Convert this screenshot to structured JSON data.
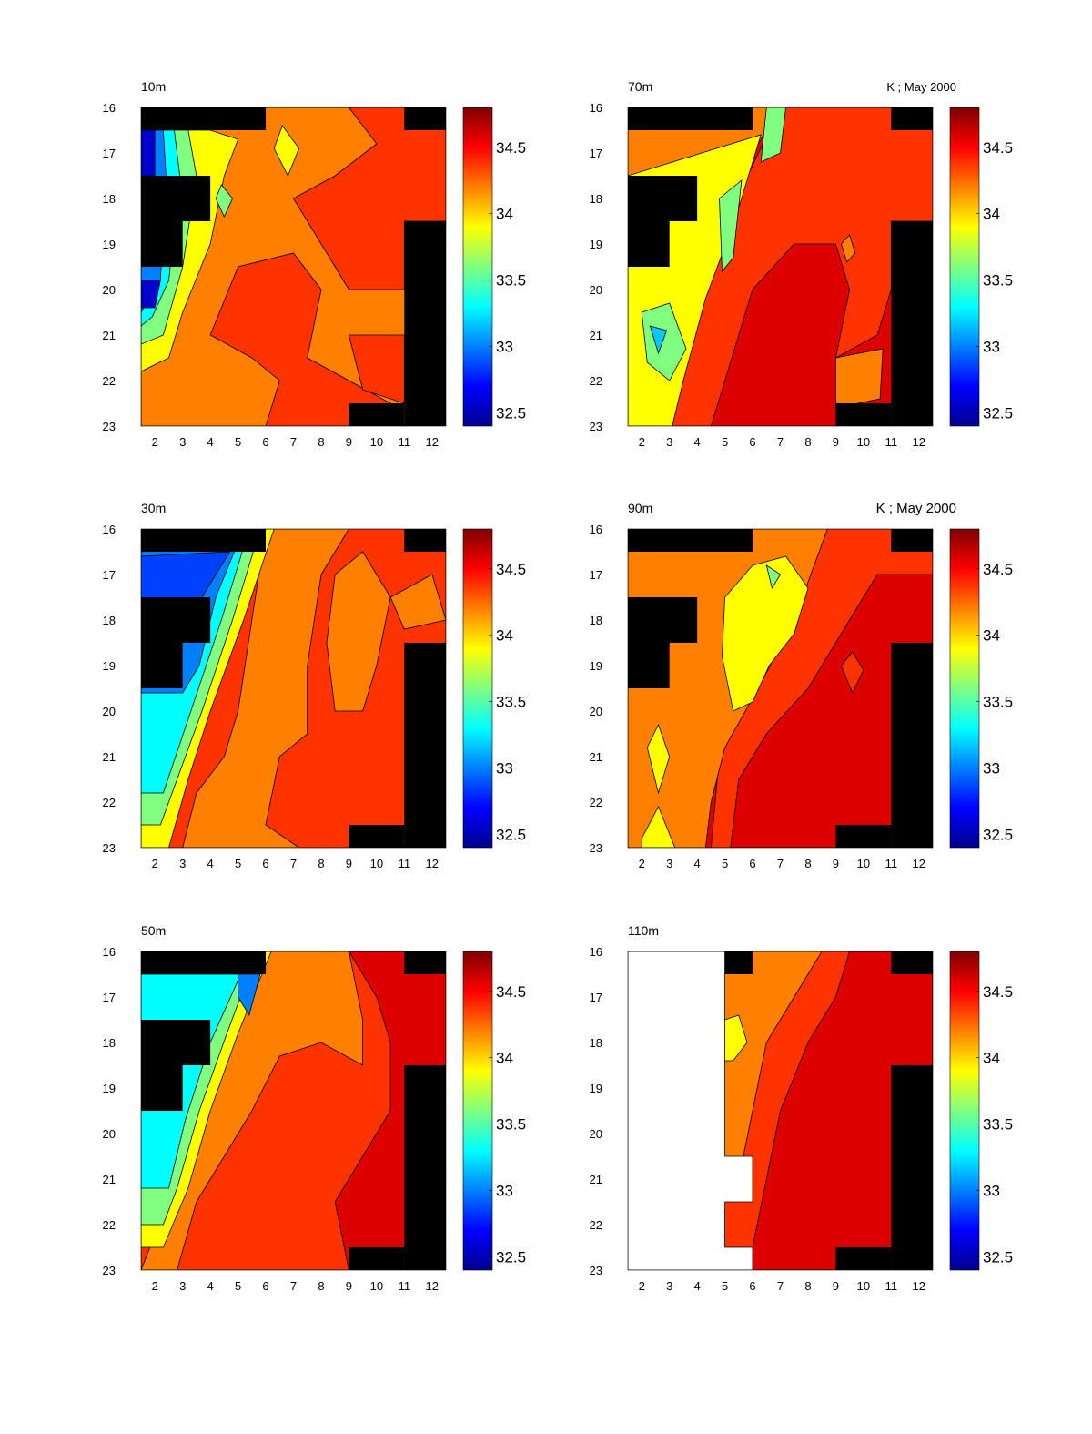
{
  "figure": {
    "annotation_top_right": "K ; May 2000",
    "annotation_mid_right": "K ; May 2000"
  },
  "colors": {
    "land_mask": "#000000",
    "contour_line": "#000000",
    "scale": [
      "#00008f",
      "#0000ff",
      "#0080ff",
      "#00ffff",
      "#80ff80",
      "#ffff00",
      "#ff8000",
      "#ff0000",
      "#800000"
    ]
  },
  "chart_data": [
    {
      "type": "heatmap",
      "title": "10m",
      "x_ticks": [
        "2",
        "3",
        "4",
        "5",
        "6",
        "7",
        "8",
        "9",
        "10",
        "11",
        "12"
      ],
      "y_ticks": [
        "16",
        "17",
        "18",
        "19",
        "20",
        "21",
        "22",
        "23"
      ],
      "xlim": [
        1.5,
        12.5
      ],
      "ylim": [
        16,
        23
      ],
      "y_direction": "down",
      "colorbar": {
        "range": [
          32.4,
          34.8
        ],
        "ticks": [
          "32.5",
          "33",
          "33.5",
          "34",
          "34.5"
        ]
      },
      "fill_levels": [
        {
          "color": "#ff8000",
          "value": 34.3,
          "region": "bulk"
        },
        {
          "color": "#ff3300",
          "value": 34.55,
          "region": "central and north-east patches"
        },
        {
          "color": "#ffff00",
          "value": 33.9,
          "region": "west-central band, x≈4-7 near y 16.5-18"
        },
        {
          "color": "#0000cc",
          "value": 32.7,
          "region": "far west, y≈16.5-17.5 and y≈19.8-20.5"
        }
      ],
      "land_mask": "black cells at NW corner, x 1.5-6 y 16-16.5; x 1.5-4 y 17.5-19.5; east coast x 11-12.5 y 18.5-23; x 9-11 y 22.5-23"
    },
    {
      "type": "heatmap",
      "title": "70m",
      "x_ticks": [
        "2",
        "3",
        "4",
        "5",
        "6",
        "7",
        "8",
        "9",
        "10",
        "11",
        "12"
      ],
      "y_ticks": [
        "16",
        "17",
        "18",
        "19",
        "20",
        "21",
        "22",
        "23"
      ],
      "xlim": [
        1.5,
        12.5
      ],
      "ylim": [
        16,
        23
      ],
      "y_direction": "down",
      "colorbar": {
        "range": [
          32.4,
          34.8
        ],
        "ticks": [
          "32.5",
          "33",
          "33.5",
          "34",
          "34.5"
        ]
      },
      "fill_levels": [
        {
          "color": "#ff0000",
          "value": 34.6,
          "region": "east of diagonal front"
        },
        {
          "color": "#ffff00",
          "value": 34.0,
          "region": "west of front"
        },
        {
          "color": "#00c8ff",
          "value": 33.3,
          "region": "pocket near x 2.5-3 y 21"
        }
      ]
    },
    {
      "type": "heatmap",
      "title": "30m",
      "x_ticks": [
        "2",
        "3",
        "4",
        "5",
        "6",
        "7",
        "8",
        "9",
        "10",
        "11",
        "12"
      ],
      "y_ticks": [
        "16",
        "17",
        "18",
        "19",
        "20",
        "21",
        "22",
        "23"
      ],
      "xlim": [
        1.5,
        12.5
      ],
      "ylim": [
        16,
        23
      ],
      "y_direction": "down",
      "colorbar": {
        "range": [
          32.4,
          34.8
        ],
        "ticks": [
          "32.5",
          "33",
          "33.5",
          "34",
          "34.5"
        ]
      },
      "fill_levels": [
        {
          "color": "#ff3300",
          "value": 34.55,
          "region": "central/east"
        },
        {
          "color": "#ff8000",
          "value": 34.3,
          "region": "patches"
        },
        {
          "color": "#00ffff",
          "value": 33.4,
          "region": "south-west"
        },
        {
          "color": "#0040ff",
          "value": 32.9,
          "region": "north-west"
        }
      ]
    },
    {
      "type": "heatmap",
      "title": "90m",
      "x_ticks": [
        "2",
        "3",
        "4",
        "5",
        "6",
        "7",
        "8",
        "9",
        "10",
        "11",
        "12"
      ],
      "y_ticks": [
        "16",
        "17",
        "18",
        "19",
        "20",
        "21",
        "22",
        "23"
      ],
      "xlim": [
        1.5,
        12.5
      ],
      "ylim": [
        16,
        23
      ],
      "y_direction": "down",
      "colorbar": {
        "range": [
          32.4,
          34.8
        ],
        "ticks": [
          "32.5",
          "33",
          "33.5",
          "34",
          "34.5"
        ]
      },
      "fill_levels": [
        {
          "color": "#ff0000",
          "value": 34.6,
          "region": "south-east"
        },
        {
          "color": "#ff8000",
          "value": 34.3,
          "region": "west"
        },
        {
          "color": "#ffff00",
          "value": 33.9,
          "region": "central north pocket"
        }
      ]
    },
    {
      "type": "heatmap",
      "title": "50m",
      "x_ticks": [
        "2",
        "3",
        "4",
        "5",
        "6",
        "7",
        "8",
        "9",
        "10",
        "11",
        "12"
      ],
      "y_ticks": [
        "16",
        "17",
        "18",
        "19",
        "20",
        "21",
        "22",
        "23"
      ],
      "xlim": [
        1.5,
        12.5
      ],
      "ylim": [
        16,
        23
      ],
      "y_direction": "down",
      "colorbar": {
        "range": [
          32.4,
          34.8
        ],
        "ticks": [
          "32.5",
          "33",
          "33.5",
          "34",
          "34.5"
        ]
      },
      "fill_levels": [
        {
          "color": "#ff3300",
          "value": 34.55,
          "region": "central"
        },
        {
          "color": "#dd0000",
          "value": 34.65,
          "region": "east"
        },
        {
          "color": "#00ffff",
          "value": 33.4,
          "region": "west"
        }
      ]
    },
    {
      "type": "heatmap",
      "title": "110m",
      "x_ticks": [
        "2",
        "3",
        "4",
        "5",
        "6",
        "7",
        "8",
        "9",
        "10",
        "11",
        "12"
      ],
      "y_ticks": [
        "16",
        "17",
        "18",
        "19",
        "20",
        "21",
        "22",
        "23"
      ],
      "xlim": [
        1.5,
        12.5
      ],
      "ylim": [
        16,
        23
      ],
      "y_direction": "down",
      "colorbar": {
        "range": [
          32.4,
          34.8
        ],
        "ticks": [
          "32.5",
          "33",
          "33.5",
          "34",
          "34.5"
        ]
      },
      "fill_levels": [
        {
          "color": "#dd0000",
          "value": 34.65,
          "region": "east"
        },
        {
          "color": "#ff8000",
          "value": 34.3,
          "region": "west"
        },
        {
          "color": "#ffffff",
          "value": null,
          "region": "no data, x 1.5-5"
        }
      ]
    }
  ]
}
